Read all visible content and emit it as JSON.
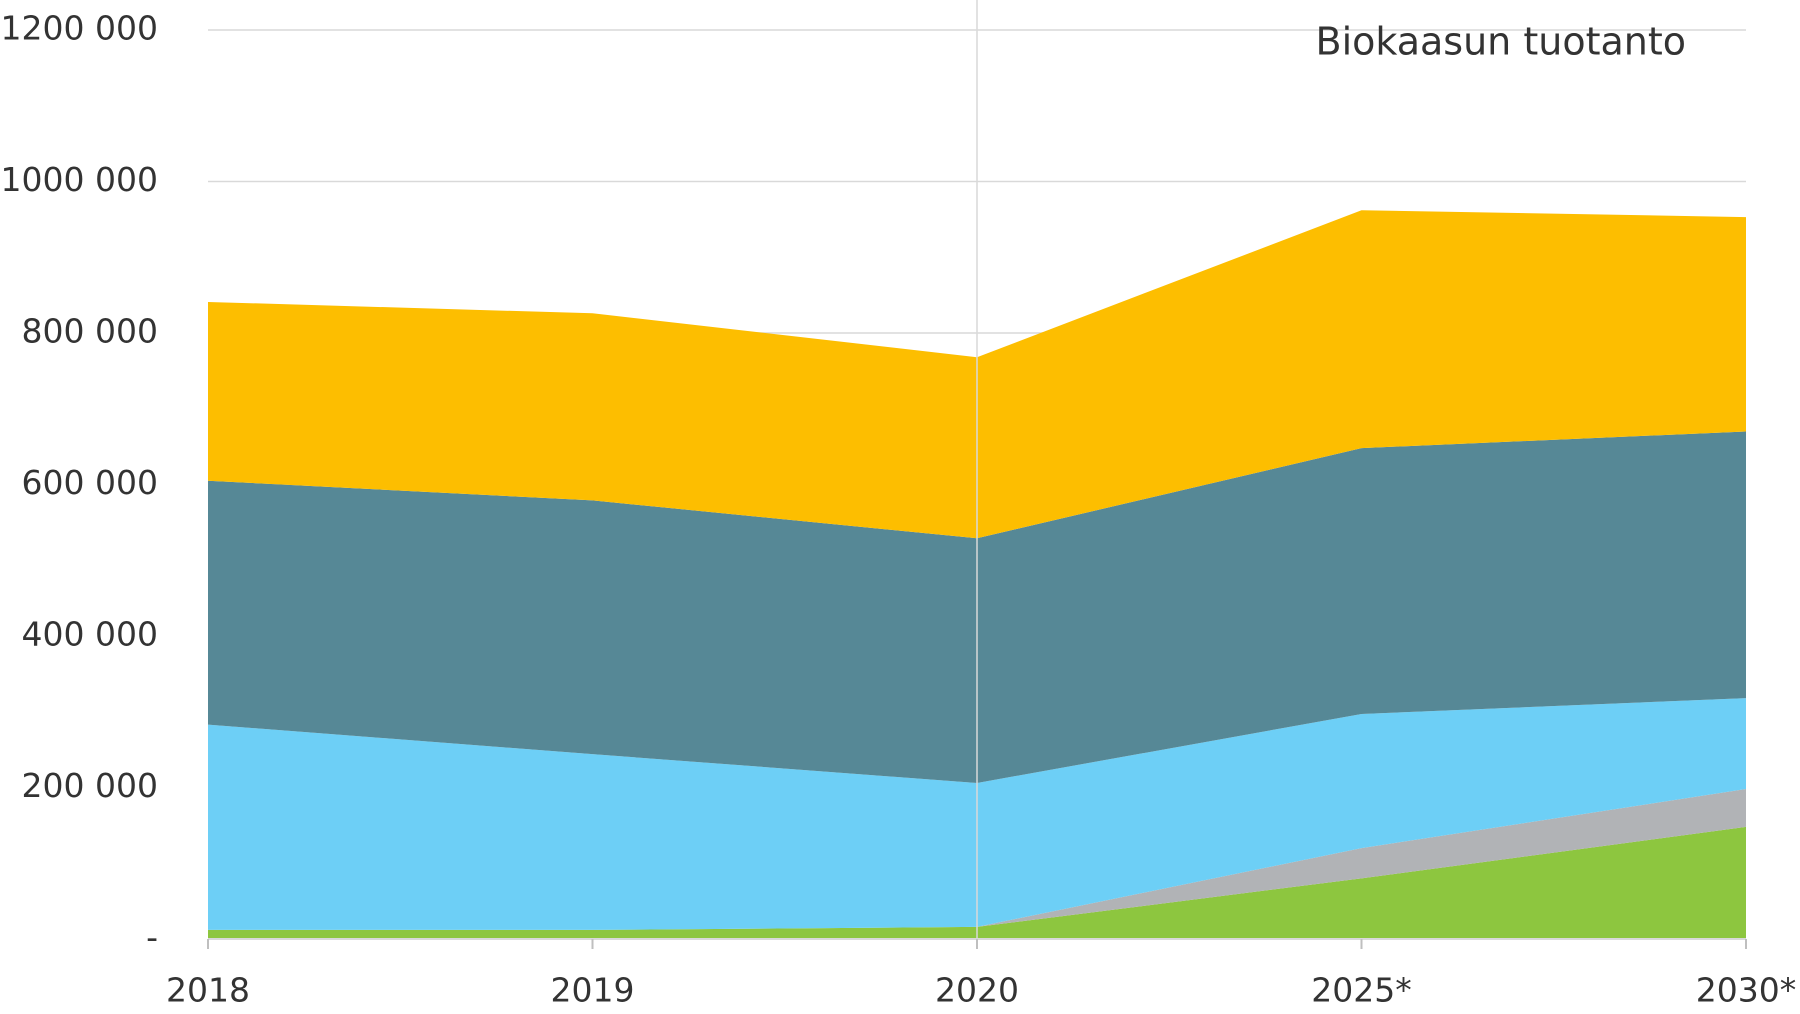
{
  "chart_data": {
    "type": "stacked_area",
    "title": "Biokaasun tuotanto",
    "categories": [
      "2018",
      "2019",
      "2020",
      "2025*",
      "2030*"
    ],
    "series": [
      {
        "color": "#8dc63f",
        "values": [
          12000,
          12000,
          16000,
          80000,
          148000
        ]
      },
      {
        "color": "#b1b3b6",
        "values": [
          0,
          0,
          0,
          40000,
          50000
        ]
      },
      {
        "color": "#6dcff6",
        "values": [
          271000,
          232000,
          190000,
          177000,
          120000
        ]
      },
      {
        "color": "#568896",
        "values": [
          322000,
          335000,
          323000,
          351000,
          352000
        ]
      },
      {
        "color": "#fdbe00",
        "values": [
          236000,
          247000,
          239000,
          314000,
          283000
        ]
      }
    ],
    "ylim": [
      0,
      1200000
    ],
    "yticks": [
      {
        "value": 0,
        "label": "-"
      },
      {
        "value": 200000,
        "label": "200 000"
      },
      {
        "value": 400000,
        "label": "400 000"
      },
      {
        "value": 600000,
        "label": "600 000"
      },
      {
        "value": 800000,
        "label": "800 000"
      },
      {
        "value": 1000000,
        "label": "1000 000"
      },
      {
        "value": 1200000,
        "label": "1200 000"
      }
    ],
    "grid": true
  }
}
